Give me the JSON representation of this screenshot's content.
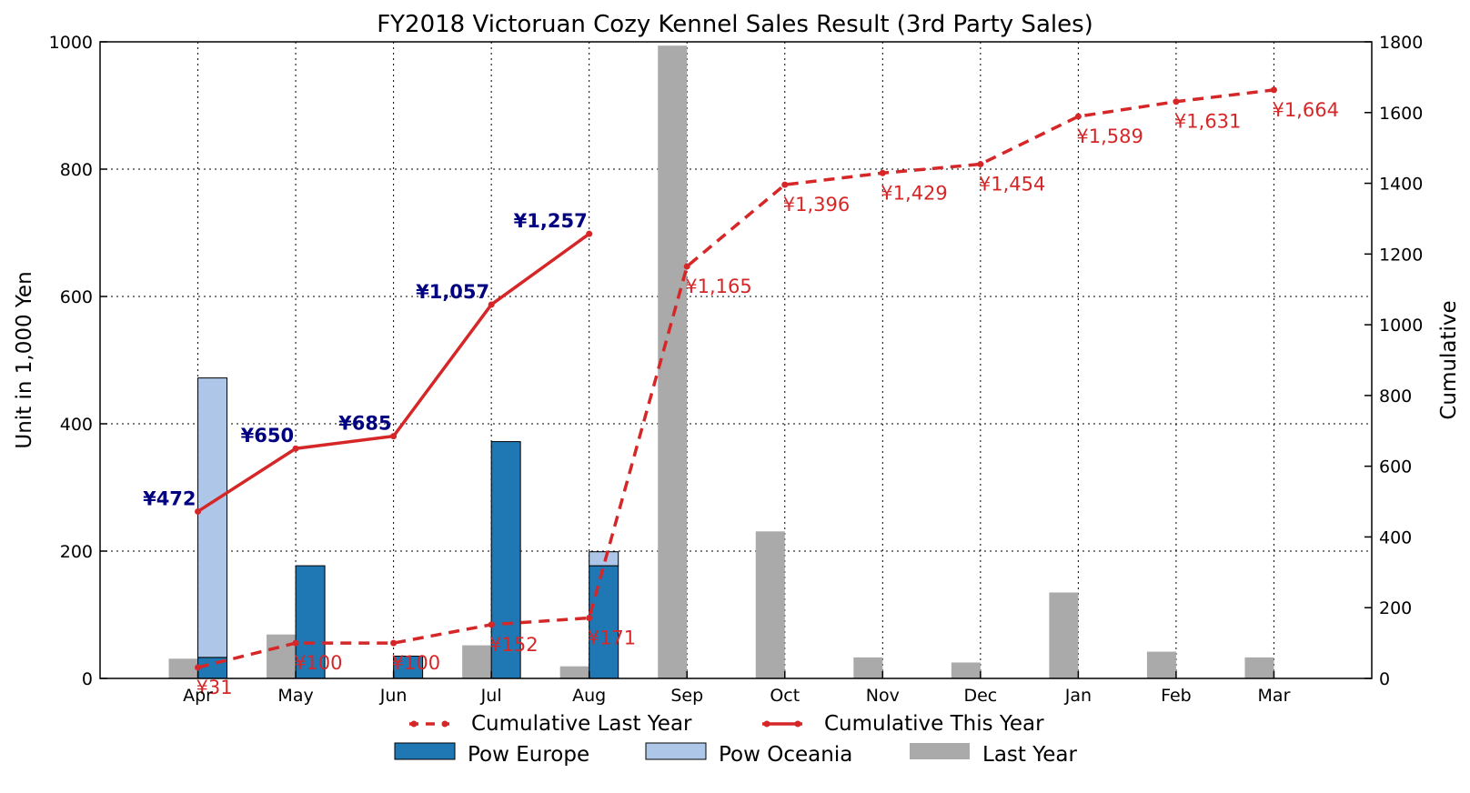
{
  "chart_data": {
    "type": "bar",
    "title": "FY2018 Victoruan Cozy Kennel Sales Result (3rd Party Sales)",
    "ylabel": "Unit in 1,000 Yen",
    "y2label": "Cumulative",
    "ylim": [
      0,
      1000
    ],
    "y2lim": [
      0,
      1800
    ],
    "yticks": [
      "0",
      "200",
      "400",
      "600",
      "800",
      "1000"
    ],
    "y2ticks": [
      "0",
      "200",
      "400",
      "600",
      "800",
      "1000",
      "1200",
      "1400",
      "1600",
      "1800"
    ],
    "grid": true,
    "categories": [
      "Apr",
      "May",
      "Jun",
      "Jul",
      "Aug",
      "Sep",
      "Oct",
      "Nov",
      "Dec",
      "Jan",
      "Feb",
      "Mar"
    ],
    "bar_series": [
      {
        "name": "Pow Europe",
        "color": "#1f77b4",
        "values": [
          33,
          177,
          35,
          372,
          177,
          null,
          null,
          null,
          null,
          null,
          null,
          null
        ]
      },
      {
        "name": "Pow Oceania",
        "color": "#aec7e8",
        "values": [
          439,
          0,
          0,
          0,
          22,
          null,
          null,
          null,
          null,
          null,
          null,
          null
        ]
      },
      {
        "name": "Last Year",
        "color": "#aaaaaa",
        "values": [
          31,
          69,
          0,
          52,
          19,
          994,
          231,
          33,
          25,
          135,
          42,
          33
        ]
      }
    ],
    "line_series": [
      {
        "name": "Cumulative Last Year",
        "color": "#d62728",
        "style": "dashed",
        "axis": "right",
        "values": [
          31,
          100,
          100,
          152,
          171,
          1165,
          1396,
          1429,
          1454,
          1589,
          1631,
          1664
        ],
        "labels": [
          "¥31",
          "¥100",
          "¥100",
          "¥152",
          "¥171",
          "¥1,165",
          "¥1,396",
          "¥1,429",
          "¥1,454",
          "¥1,589",
          "¥1,631",
          "¥1,664"
        ]
      },
      {
        "name": "Cumulative This Year",
        "color": "#d62728",
        "style": "solid",
        "axis": "right",
        "values": [
          472,
          650,
          685,
          1057,
          1257,
          null,
          null,
          null,
          null,
          null,
          null,
          null
        ],
        "labels": [
          "¥472",
          "¥650",
          "¥685",
          "¥1,057",
          "¥1,257",
          "",
          "",
          "",
          "",
          "",
          "",
          ""
        ]
      }
    ],
    "legend_position": "bottom-center"
  }
}
